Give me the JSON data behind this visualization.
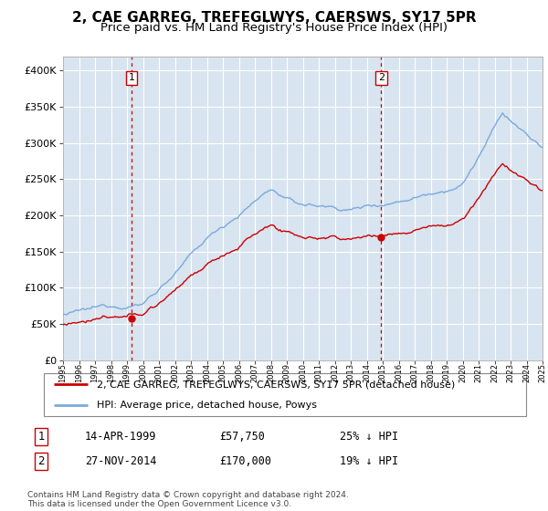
{
  "title": "2, CAE GARREG, TREFEGLWYS, CAERSWS, SY17 5PR",
  "subtitle": "Price paid vs. HM Land Registry's House Price Index (HPI)",
  "ylim": [
    0,
    420000
  ],
  "yticks": [
    0,
    50000,
    100000,
    150000,
    200000,
    250000,
    300000,
    350000,
    400000
  ],
  "ytick_labels": [
    "£0",
    "£50K",
    "£100K",
    "£150K",
    "£200K",
    "£250K",
    "£300K",
    "£350K",
    "£400K"
  ],
  "x_start_year": 1995,
  "x_end_year": 2025,
  "background_color": "#d8e4f0",
  "hpi_color": "#7aaadc",
  "price_color": "#cc0000",
  "vline_color": "#cc0000",
  "sale1_year": 1999.28,
  "sale1_price": 57750,
  "sale1_label": "1",
  "sale1_date": "14-APR-1999",
  "sale1_pct": "25% ↓ HPI",
  "sale2_year": 2014.9,
  "sale2_price": 170000,
  "sale2_label": "2",
  "sale2_date": "27-NOV-2014",
  "sale2_pct": "19% ↓ HPI",
  "legend_line1": "2, CAE GARREG, TREFEGLWYS, CAERSWS, SY17 5PR (detached house)",
  "legend_line2": "HPI: Average price, detached house, Powys",
  "footer": "Contains HM Land Registry data © Crown copyright and database right 2024.\nThis data is licensed under the Open Government Licence v3.0.",
  "title_fontsize": 11,
  "subtitle_fontsize": 9.5
}
